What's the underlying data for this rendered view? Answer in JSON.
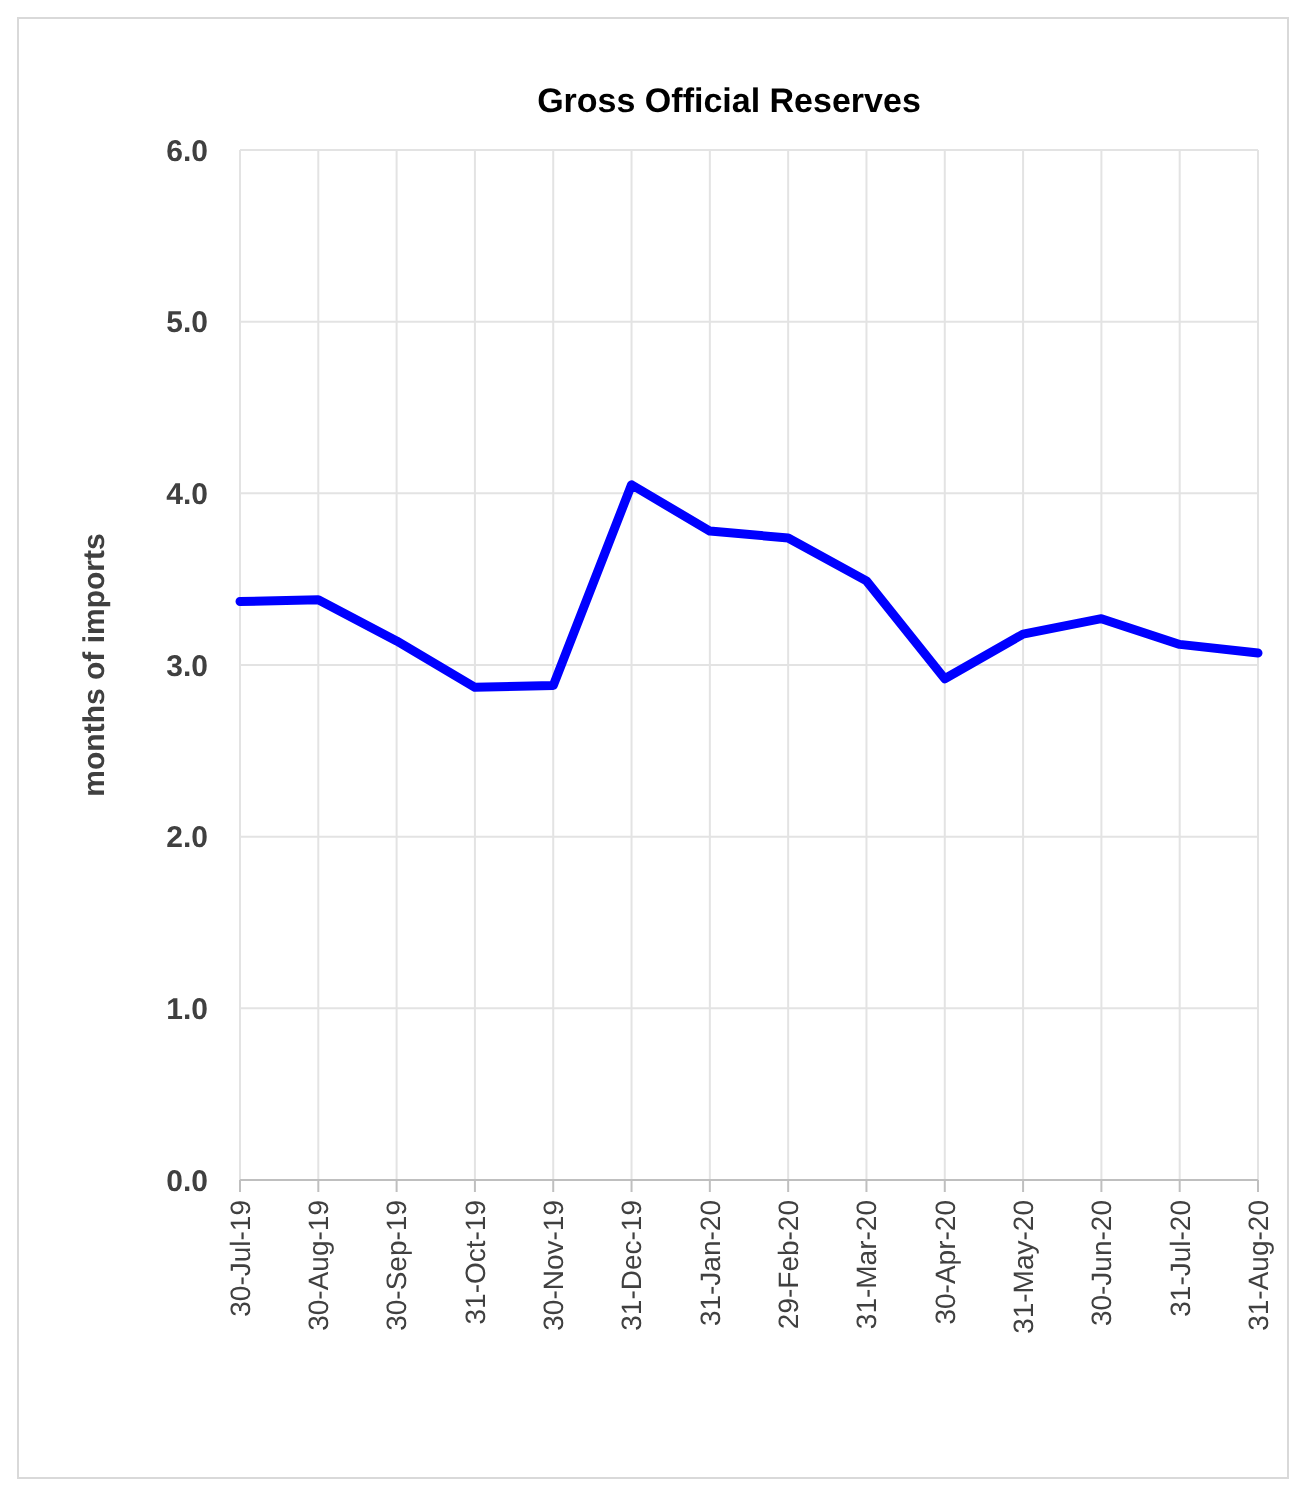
{
  "chart_data": {
    "type": "line",
    "title": "Gross Official Reserves",
    "ylabel": "months of imports",
    "categories": [
      "30-Jul-19",
      "30-Aug-19",
      "30-Sep-19",
      "31-Oct-19",
      "30-Nov-19",
      "31-Dec-19",
      "31-Jan-20",
      "29-Feb-20",
      "31-Mar-20",
      "30-Apr-20",
      "31-May-20",
      "30-Jun-20",
      "31-Jul-20",
      "31-Aug-20"
    ],
    "series": [
      {
        "color": "#0000ff",
        "values": [
          3.37,
          3.38,
          3.14,
          2.87,
          2.88,
          4.05,
          3.78,
          3.74,
          3.49,
          2.92,
          3.18,
          3.27,
          3.12,
          3.07
        ]
      }
    ],
    "ylim": [
      0,
      6
    ],
    "yticks": [
      {
        "value": 0,
        "label": "0.0"
      },
      {
        "value": 1,
        "label": "1.0"
      },
      {
        "value": 2,
        "label": "2.0"
      },
      {
        "value": 3,
        "label": "3.0"
      },
      {
        "value": 4,
        "label": "4.0"
      },
      {
        "value": 5,
        "label": "5.0"
      },
      {
        "value": 6,
        "label": "6.0"
      }
    ],
    "grid": true,
    "marker": "none",
    "line_style": "solid"
  }
}
